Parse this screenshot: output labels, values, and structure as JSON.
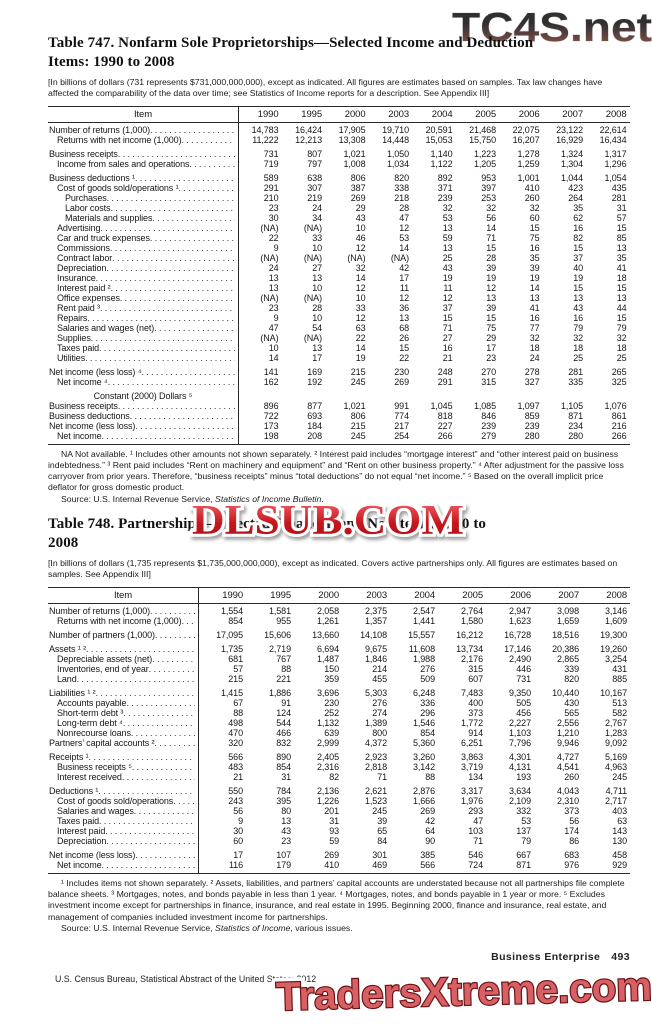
{
  "watermarks": {
    "top_right": "TC4S.net",
    "middle": "DLSUB.COM",
    "bottom": "TradersXtreme.com"
  },
  "table747": {
    "title_line1": "Table 747. Nonfarm Sole Proprietorships—Selected Income and Deduction",
    "title_line2": "Items: 1990 to 2008",
    "note": "[In billions of dollars (731 represents $731,000,000,000), except as indicated. All figures are estimates based on samples. Tax law changes have affected the comparability of the data over time; see Statistics of Income reports for a description. See Appendix III]",
    "item_header": "Item",
    "years": [
      "1990",
      "1995",
      "2000",
      "2003",
      "2004",
      "2005",
      "2006",
      "2007",
      "2008"
    ],
    "rows": [
      {
        "label": "Number of returns (1,000)",
        "indent": 0,
        "values": [
          "14,783",
          "16,424",
          "17,905",
          "19,710",
          "20,591",
          "21,468",
          "22,075",
          "23,122",
          "22,614"
        ]
      },
      {
        "label": "Returns with net income (1,000)",
        "indent": 1,
        "values": [
          "11,222",
          "12,213",
          "13,308",
          "14,448",
          "15,053",
          "15,750",
          "16,207",
          "16,929",
          "16,434"
        ]
      },
      {
        "label": "Business receipts",
        "indent": 0,
        "gap": true,
        "values": [
          "731",
          "807",
          "1,021",
          "1,050",
          "1,140",
          "1,223",
          "1,278",
          "1,324",
          "1,317"
        ]
      },
      {
        "label": "Income from sales and operations",
        "indent": 1,
        "values": [
          "719",
          "797",
          "1,008",
          "1,034",
          "1,122",
          "1,205",
          "1,259",
          "1,304",
          "1,296"
        ]
      },
      {
        "label": "Business deductions ¹",
        "indent": 0,
        "gap": true,
        "values": [
          "589",
          "638",
          "806",
          "820",
          "892",
          "953",
          "1,001",
          "1,044",
          "1,054"
        ]
      },
      {
        "label": "Cost of goods sold/operations ¹",
        "indent": 1,
        "values": [
          "291",
          "307",
          "387",
          "338",
          "371",
          "397",
          "410",
          "423",
          "435"
        ]
      },
      {
        "label": "Purchases",
        "indent": 2,
        "values": [
          "210",
          "219",
          "269",
          "218",
          "239",
          "253",
          "260",
          "264",
          "281"
        ]
      },
      {
        "label": "Labor costs",
        "indent": 2,
        "values": [
          "23",
          "24",
          "29",
          "28",
          "32",
          "32",
          "32",
          "35",
          "31"
        ]
      },
      {
        "label": "Materials and supplies",
        "indent": 2,
        "values": [
          "30",
          "34",
          "43",
          "47",
          "53",
          "56",
          "60",
          "62",
          "57"
        ]
      },
      {
        "label": "Advertising",
        "indent": 1,
        "values": [
          "(NA)",
          "(NA)",
          "10",
          "12",
          "13",
          "14",
          "15",
          "16",
          "15"
        ]
      },
      {
        "label": "Car and truck expenses",
        "indent": 1,
        "values": [
          "22",
          "33",
          "46",
          "53",
          "59",
          "71",
          "75",
          "82",
          "85"
        ]
      },
      {
        "label": "Commissions",
        "indent": 1,
        "values": [
          "9",
          "10",
          "12",
          "14",
          "13",
          "15",
          "16",
          "15",
          "13"
        ]
      },
      {
        "label": "Contract labor",
        "indent": 1,
        "values": [
          "(NA)",
          "(NA)",
          "(NA)",
          "(NA)",
          "25",
          "28",
          "35",
          "37",
          "35"
        ]
      },
      {
        "label": "Depreciation",
        "indent": 1,
        "values": [
          "24",
          "27",
          "32",
          "42",
          "43",
          "39",
          "39",
          "40",
          "41"
        ]
      },
      {
        "label": "Insurance",
        "indent": 1,
        "values": [
          "13",
          "13",
          "14",
          "17",
          "19",
          "19",
          "19",
          "19",
          "18"
        ]
      },
      {
        "label": "Interest paid ²",
        "indent": 1,
        "values": [
          "13",
          "10",
          "12",
          "11",
          "11",
          "12",
          "14",
          "15",
          "15"
        ]
      },
      {
        "label": "Office expenses",
        "indent": 1,
        "values": [
          "(NA)",
          "(NA)",
          "10",
          "12",
          "12",
          "13",
          "13",
          "13",
          "13"
        ]
      },
      {
        "label": "Rent paid ³",
        "indent": 1,
        "values": [
          "23",
          "28",
          "33",
          "36",
          "37",
          "39",
          "41",
          "43",
          "44"
        ]
      },
      {
        "label": "Repairs",
        "indent": 1,
        "values": [
          "9",
          "10",
          "12",
          "13",
          "15",
          "15",
          "16",
          "16",
          "15"
        ]
      },
      {
        "label": "Salaries and wages (net)",
        "indent": 1,
        "values": [
          "47",
          "54",
          "63",
          "68",
          "71",
          "75",
          "77",
          "79",
          "79"
        ]
      },
      {
        "label": "Supplies",
        "indent": 1,
        "values": [
          "(NA)",
          "(NA)",
          "22",
          "26",
          "27",
          "29",
          "32",
          "32",
          "32"
        ]
      },
      {
        "label": "Taxes paid",
        "indent": 1,
        "values": [
          "10",
          "13",
          "14",
          "15",
          "16",
          "17",
          "18",
          "18",
          "18"
        ]
      },
      {
        "label": "Utilities",
        "indent": 1,
        "values": [
          "14",
          "17",
          "19",
          "22",
          "21",
          "23",
          "24",
          "25",
          "25"
        ]
      },
      {
        "label": "Net income (less loss) ⁴",
        "indent": 0,
        "gap": true,
        "values": [
          "141",
          "169",
          "215",
          "230",
          "248",
          "270",
          "278",
          "281",
          "265"
        ]
      },
      {
        "label": "Net income ⁴",
        "indent": 1,
        "values": [
          "162",
          "192",
          "245",
          "269",
          "291",
          "315",
          "327",
          "335",
          "325"
        ]
      },
      {
        "subhead": true,
        "gap": true,
        "label": "Constant (2000) Dollars ⁵"
      },
      {
        "label": "Business receipts",
        "indent": 0,
        "values": [
          "896",
          "877",
          "1,021",
          "991",
          "1,045",
          "1,085",
          "1,097",
          "1,105",
          "1,076"
        ]
      },
      {
        "label": "Business deductions",
        "indent": 0,
        "values": [
          "722",
          "693",
          "806",
          "774",
          "818",
          "846",
          "859",
          "871",
          "861"
        ]
      },
      {
        "label": "Net income (less loss)",
        "indent": 0,
        "values": [
          "173",
          "184",
          "215",
          "217",
          "227",
          "239",
          "239",
          "234",
          "216"
        ]
      },
      {
        "label": "Net income",
        "indent": 1,
        "values": [
          "198",
          "208",
          "245",
          "254",
          "266",
          "279",
          "280",
          "280",
          "266"
        ]
      }
    ],
    "footnote": "NA Not available. ¹ Includes other amounts not shown separately. ² Interest paid includes “mortgage interest” and “other interest paid on business indebtedness.” ³ Rent paid includes “Rent on machinery and equipment” and “Rent on other business property.” ⁴ After adjustment for the passive loss carryover from prior years. Therefore, “business receipts” minus “total deductions” do not equal “net income.” ⁵ Based on the overall implicit price deflator for gross domestic product.",
    "source_prefix": "Source: U.S. Internal Revenue Service, ",
    "source_italic": "Statistics of Income Bulletin",
    "source_suffix": "."
  },
  "table748": {
    "title_line1": "Table 748. Partnerships—Selected Financial and Net Items: 1990 to",
    "title_line2": "2008",
    "note": "[In billions of dollars (1,735 represents $1,735,000,000,000), except as indicated. Covers active partnerships only. All figures are estimates based on samples. See Appendix III]",
    "item_header": "Item",
    "years": [
      "1990",
      "1995",
      "2000",
      "2003",
      "2004",
      "2005",
      "2006",
      "2007",
      "2008"
    ],
    "rows": [
      {
        "label": "Number of returns (1,000)",
        "indent": 0,
        "values": [
          "1,554",
          "1,581",
          "2,058",
          "2,375",
          "2,547",
          "2,764",
          "2,947",
          "3,098",
          "3,146"
        ]
      },
      {
        "label": "Returns with net income (1,000)",
        "indent": 1,
        "values": [
          "854",
          "955",
          "1,261",
          "1,357",
          "1,441",
          "1,580",
          "1,623",
          "1,659",
          "1,609"
        ]
      },
      {
        "label": "Number of partners (1,000)",
        "indent": 0,
        "gap": true,
        "values": [
          "17,095",
          "15,606",
          "13,660",
          "14,108",
          "15,557",
          "16,212",
          "16,728",
          "18,516",
          "19,300"
        ]
      },
      {
        "label": "Assets ¹ ²",
        "indent": 0,
        "gap": true,
        "values": [
          "1,735",
          "2,719",
          "6,694",
          "9,675",
          "11,608",
          "13,734",
          "17,146",
          "20,386",
          "19,260"
        ]
      },
      {
        "label": "Depreciable assets (net)",
        "indent": 1,
        "values": [
          "681",
          "767",
          "1,487",
          "1,846",
          "1,988",
          "2,176",
          "2,490",
          "2,865",
          "3,254"
        ]
      },
      {
        "label": "Inventories, end of year",
        "indent": 1,
        "values": [
          "57",
          "88",
          "150",
          "214",
          "276",
          "315",
          "446",
          "339",
          "431"
        ]
      },
      {
        "label": "Land",
        "indent": 1,
        "values": [
          "215",
          "221",
          "359",
          "455",
          "509",
          "607",
          "731",
          "820",
          "885"
        ]
      },
      {
        "label": "Liabilities ¹ ²",
        "indent": 0,
        "gap": true,
        "values": [
          "1,415",
          "1,886",
          "3,696",
          "5,303",
          "6,248",
          "7,483",
          "9,350",
          "10,440",
          "10,167"
        ]
      },
      {
        "label": "Accounts payable",
        "indent": 1,
        "values": [
          "67",
          "91",
          "230",
          "276",
          "336",
          "400",
          "505",
          "430",
          "513"
        ]
      },
      {
        "label": "Short-term debt ³",
        "indent": 1,
        "values": [
          "88",
          "124",
          "252",
          "274",
          "296",
          "373",
          "456",
          "565",
          "582"
        ]
      },
      {
        "label": "Long-term debt ⁴",
        "indent": 1,
        "values": [
          "498",
          "544",
          "1,132",
          "1,389",
          "1,546",
          "1,772",
          "2,227",
          "2,556",
          "2,767"
        ]
      },
      {
        "label": "Nonrecourse loans",
        "indent": 1,
        "values": [
          "470",
          "466",
          "639",
          "800",
          "854",
          "914",
          "1,103",
          "1,210",
          "1,283"
        ]
      },
      {
        "label": "Partners’ capital accounts ²",
        "indent": 0,
        "values": [
          "320",
          "832",
          "2,999",
          "4,372",
          "5,360",
          "6,251",
          "7,796",
          "9,946",
          "9,092"
        ]
      },
      {
        "label": "Receipts ¹",
        "indent": 0,
        "gap": true,
        "values": [
          "566",
          "890",
          "2,405",
          "2,923",
          "3,260",
          "3,863",
          "4,301",
          "4,727",
          "5,169"
        ]
      },
      {
        "label": "Business receipts ⁵",
        "indent": 1,
        "values": [
          "483",
          "854",
          "2,316",
          "2,818",
          "3,142",
          "3,719",
          "4,131",
          "4,541",
          "4,963"
        ]
      },
      {
        "label": "Interest received",
        "indent": 1,
        "values": [
          "21",
          "31",
          "82",
          "71",
          "88",
          "134",
          "193",
          "260",
          "245"
        ]
      },
      {
        "label": "Deductions ¹",
        "indent": 0,
        "gap": true,
        "values": [
          "550",
          "784",
          "2,136",
          "2,621",
          "2,876",
          "3,317",
          "3,634",
          "4,043",
          "4,711"
        ]
      },
      {
        "label": "Cost of goods sold/operations",
        "indent": 1,
        "values": [
          "243",
          "395",
          "1,226",
          "1,523",
          "1,666",
          "1,976",
          "2,109",
          "2,310",
          "2,717"
        ]
      },
      {
        "label": "Salaries and wages",
        "indent": 1,
        "values": [
          "56",
          "80",
          "201",
          "245",
          "269",
          "293",
          "332",
          "373",
          "403"
        ]
      },
      {
        "label": "Taxes paid",
        "indent": 1,
        "values": [
          "9",
          "13",
          "31",
          "39",
          "42",
          "47",
          "53",
          "56",
          "63"
        ]
      },
      {
        "label": "Interest paid",
        "indent": 1,
        "values": [
          "30",
          "43",
          "93",
          "65",
          "64",
          "103",
          "137",
          "174",
          "143"
        ]
      },
      {
        "label": "Depreciation",
        "indent": 1,
        "values": [
          "60",
          "23",
          "59",
          "84",
          "90",
          "71",
          "79",
          "86",
          "130"
        ]
      },
      {
        "label": "Net income (less loss)",
        "indent": 0,
        "gap": true,
        "values": [
          "17",
          "107",
          "269",
          "301",
          "385",
          "546",
          "667",
          "683",
          "458"
        ]
      },
      {
        "label": "Net income",
        "indent": 1,
        "values": [
          "116",
          "179",
          "410",
          "469",
          "566",
          "724",
          "871",
          "976",
          "929"
        ]
      }
    ],
    "footnote": "¹ Includes items not shown separately. ² Assets, liabilities, and partners’ capital accounts are understated because not all partnerships file complete balance sheets. ³ Mortgages, notes, and bonds payable in less than 1 year. ⁴ Mortgages, notes, and bonds payable in 1 year or more. ⁵ Excludes investment income except for partnerships in finance, insurance, and real estate in 1995. Beginning 2000, finance and insurance, real estate, and management of companies included investment income for partnerships.",
    "source_prefix": "Source: U.S. Internal Revenue Service, ",
    "source_italic": "Statistics of Income",
    "source_suffix": ", various issues."
  },
  "footer": {
    "running_head": "Business Enterprise",
    "page_number": "493",
    "credit": "U.S. Census Bureau, Statistical Abstract of the United States: 2012"
  }
}
